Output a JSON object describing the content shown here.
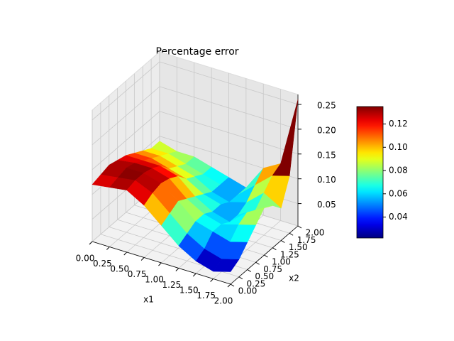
{
  "chart_data": {
    "type": "surface3d",
    "title": "Percentage error",
    "xlabel": "x1",
    "ylabel": "x2",
    "x": [
      0,
      0.25,
      0.5,
      0.75,
      1,
      1.25,
      1.5,
      1.75,
      2
    ],
    "y": [
      0,
      0.25,
      0.5,
      0.75,
      1,
      1.25,
      1.5,
      1.75,
      2
    ],
    "z": [
      [
        0.12,
        0.125,
        0.13,
        0.125,
        0.12,
        0.11,
        0.1,
        0.09,
        0.09
      ],
      [
        0.125,
        0.13,
        0.135,
        0.13,
        0.12,
        0.11,
        0.1,
        0.09,
        0.08
      ],
      [
        0.13,
        0.135,
        0.135,
        0.13,
        0.12,
        0.1,
        0.09,
        0.08,
        0.08
      ],
      [
        0.11,
        0.12,
        0.125,
        0.12,
        0.11,
        0.09,
        0.08,
        0.07,
        0.07
      ],
      [
        0.08,
        0.09,
        0.1,
        0.09,
        0.08,
        0.07,
        0.06,
        0.06,
        0.06
      ],
      [
        0.05,
        0.06,
        0.07,
        0.07,
        0.06,
        0.06,
        0.05,
        0.05,
        0.05
      ],
      [
        0.03,
        0.04,
        0.06,
        0.06,
        0.05,
        0.05,
        0.06,
        0.08,
        0.1
      ],
      [
        0.02,
        0.03,
        0.05,
        0.07,
        0.08,
        0.07,
        0.09,
        0.11,
        0.12
      ],
      [
        0.03,
        0.04,
        0.06,
        0.08,
        0.1,
        0.09,
        0.07,
        0.12,
        0.26
      ]
    ],
    "xlim": [
      0,
      2
    ],
    "ylim": [
      0,
      2
    ],
    "zlim": [
      0.005,
      0.27
    ],
    "xticks": [
      {
        "value": 0,
        "label": "0.00"
      },
      {
        "value": 0.25,
        "label": "0.25"
      },
      {
        "value": 0.5,
        "label": "0.50"
      },
      {
        "value": 0.75,
        "label": "0.75"
      },
      {
        "value": 1,
        "label": "1.00"
      },
      {
        "value": 1.25,
        "label": "1.25"
      },
      {
        "value": 1.5,
        "label": "1.50"
      },
      {
        "value": 1.75,
        "label": "1.75"
      },
      {
        "value": 2,
        "label": "2.00"
      }
    ],
    "yticks": [
      {
        "value": 0,
        "label": "0.00"
      },
      {
        "value": 0.25,
        "label": "0.25"
      },
      {
        "value": 0.5,
        "label": "0.50"
      },
      {
        "value": 0.75,
        "label": "0.75"
      },
      {
        "value": 1,
        "label": "1.00"
      },
      {
        "value": 1.25,
        "label": "1.25"
      },
      {
        "value": 1.5,
        "label": "1.50"
      },
      {
        "value": 1.75,
        "label": "1.75"
      },
      {
        "value": 2,
        "label": "2.00"
      }
    ],
    "zticks": [
      {
        "value": 0.05,
        "label": "0.05"
      },
      {
        "value": 0.1,
        "label": "0.10"
      },
      {
        "value": 0.15,
        "label": "0.15"
      },
      {
        "value": 0.2,
        "label": "0.20"
      },
      {
        "value": 0.25,
        "label": "0.25"
      }
    ],
    "colormap": "jet",
    "clim": [
      0.022,
      0.135
    ],
    "colorbar_ticks": [
      {
        "value": 0.04,
        "label": "0.04"
      },
      {
        "value": 0.06,
        "label": "0.06"
      },
      {
        "value": 0.08,
        "label": "0.08"
      },
      {
        "value": 0.1,
        "label": "0.10"
      },
      {
        "value": 0.12,
        "label": "0.12"
      }
    ],
    "grid": true
  }
}
